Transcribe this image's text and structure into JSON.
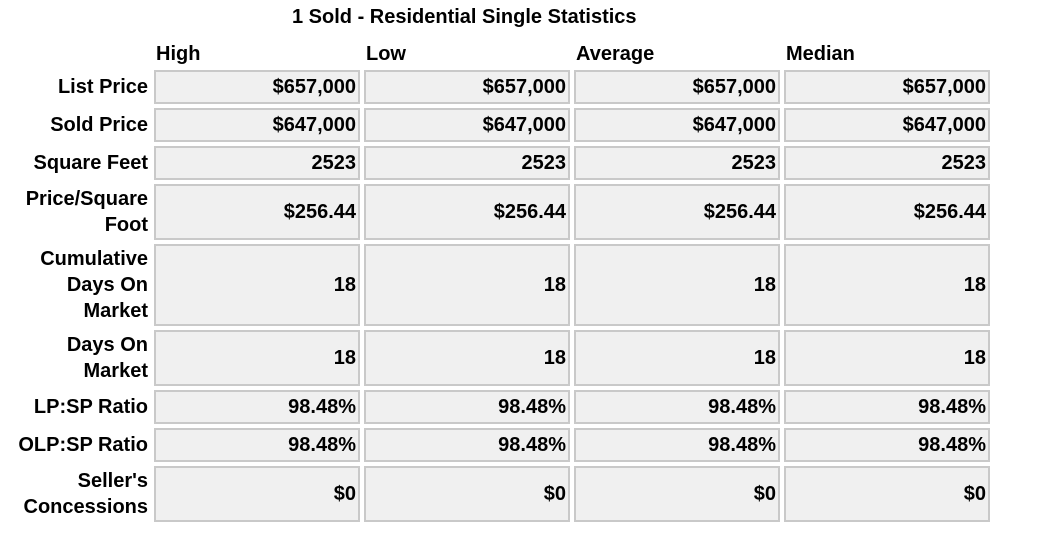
{
  "title": "1 Sold - Residential Single Statistics",
  "columns": [
    "High",
    "Low",
    "Average",
    "Median"
  ],
  "rows": [
    {
      "label": "List Price",
      "values": [
        "$657,000",
        "$657,000",
        "$657,000",
        "$657,000"
      ]
    },
    {
      "label": "Sold Price",
      "values": [
        "$647,000",
        "$647,000",
        "$647,000",
        "$647,000"
      ]
    },
    {
      "label": "Square Feet",
      "values": [
        "2523",
        "2523",
        "2523",
        "2523"
      ]
    },
    {
      "label": "Price/Square Foot",
      "values": [
        "$256.44",
        "$256.44",
        "$256.44",
        "$256.44"
      ]
    },
    {
      "label": "Cumulative Days On Market",
      "values": [
        "18",
        "18",
        "18",
        "18"
      ]
    },
    {
      "label": "Days On Market",
      "values": [
        "18",
        "18",
        "18",
        "18"
      ]
    },
    {
      "label": "LP:SP Ratio",
      "values": [
        "98.48%",
        "98.48%",
        "98.48%",
        "98.48%"
      ]
    },
    {
      "label": "OLP:SP Ratio",
      "values": [
        "98.48%",
        "98.48%",
        "98.48%",
        "98.48%"
      ]
    },
    {
      "label": "Seller's Concessions",
      "values": [
        "$0",
        "$0",
        "$0",
        "$0"
      ]
    }
  ]
}
